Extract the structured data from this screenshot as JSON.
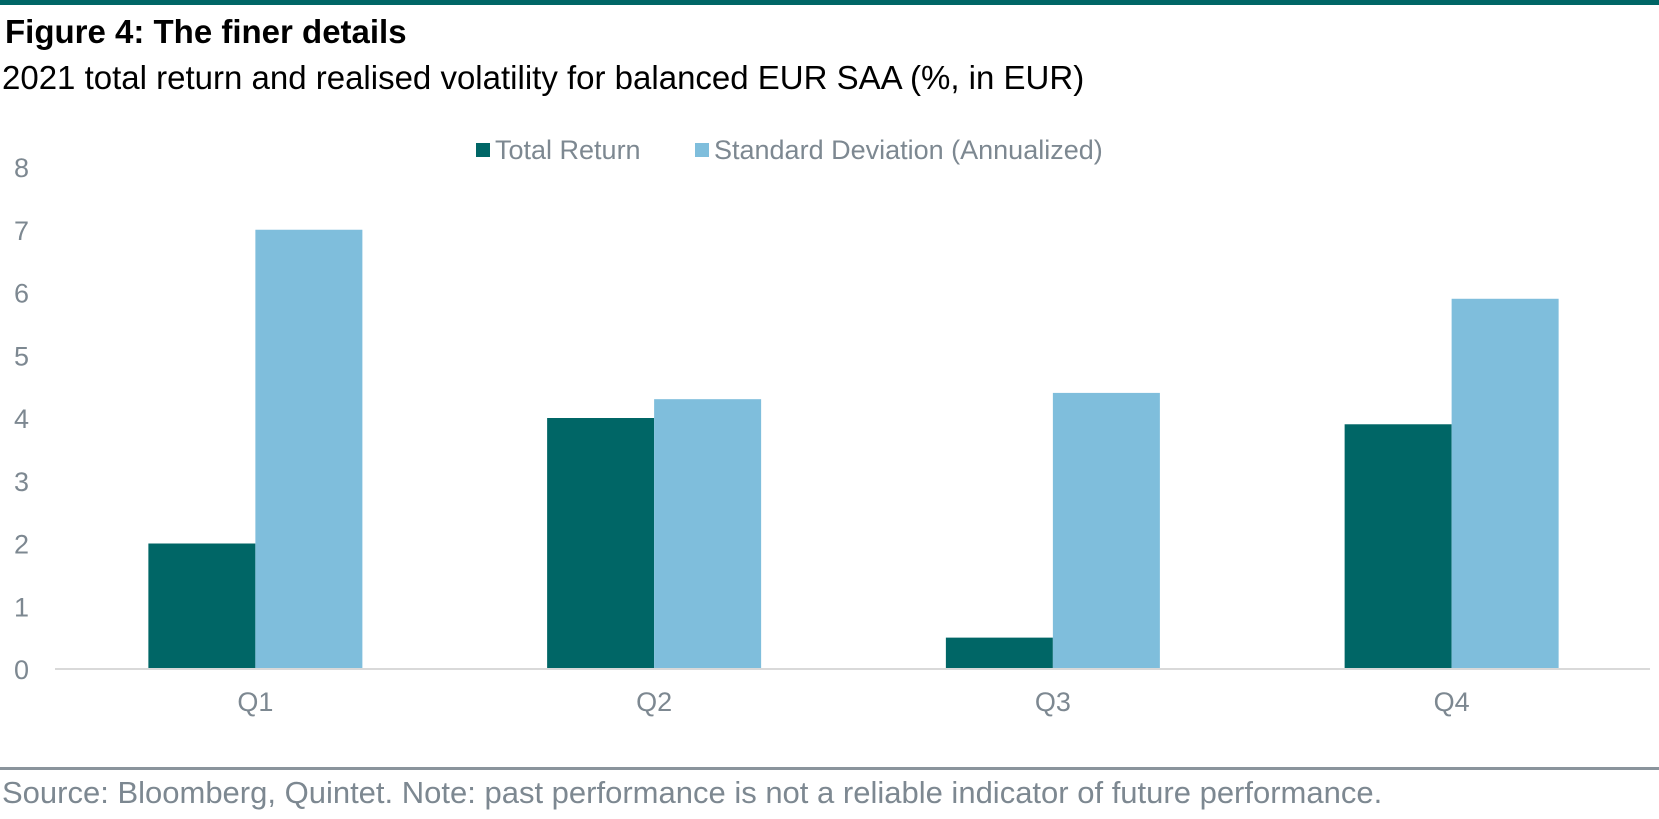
{
  "header": {
    "title": "Figure 4: The finer details",
    "subtitle": "2021 total return and realised volatility for balanced EUR SAA (%, in EUR)"
  },
  "footer": {
    "source": "Source: Bloomberg, Quintet. Note: past performance is not a reliable indicator of future performance."
  },
  "colors": {
    "accent": "#006666",
    "total_return": "#006666",
    "std_dev": "#7fbedc",
    "axis_text": "#7d8891",
    "axis_line": "#d9d9d9"
  },
  "chart_data": {
    "type": "bar",
    "categories": [
      "Q1",
      "Q2",
      "Q3",
      "Q4"
    ],
    "series": [
      {
        "name": "Total Return",
        "values": [
          2.0,
          4.0,
          0.5,
          3.9
        ]
      },
      {
        "name": "Standard Deviation (Annualized)",
        "values": [
          7.0,
          4.3,
          4.4,
          5.9
        ]
      }
    ],
    "ylim": [
      0,
      8
    ],
    "yticks": [
      "0",
      "1",
      "2",
      "3",
      "4",
      "5",
      "6",
      "7",
      "8"
    ],
    "grid": false,
    "legend_position": "top-center"
  }
}
